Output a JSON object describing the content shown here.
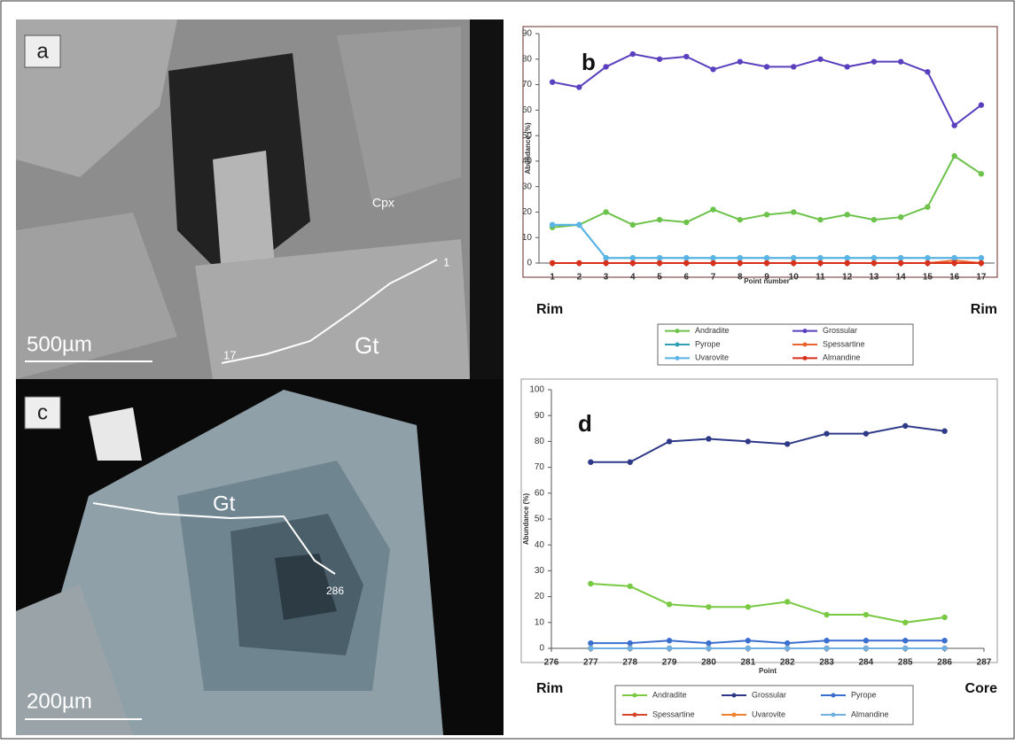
{
  "images": [
    {
      "label": "a",
      "annotations": [
        "Cpx",
        "Gt",
        "17",
        "1"
      ],
      "scale_bar": "500µm"
    },
    {
      "label": "c",
      "annotations": [
        "Gt",
        "286"
      ],
      "scale_bar": "200µm"
    }
  ],
  "chart_data": [
    {
      "type": "line",
      "label": "b",
      "x_label": "Point number",
      "y_label": "Abundance (%)",
      "left_label": "Rim",
      "right_label": "Rim",
      "x": [
        1,
        2,
        3,
        4,
        5,
        6,
        7,
        8,
        9,
        10,
        11,
        12,
        13,
        14,
        15,
        16,
        17
      ],
      "xlim": [
        0.5,
        17.5
      ],
      "xticks": [
        1,
        2,
        3,
        4,
        5,
        6,
        7,
        8,
        9,
        10,
        11,
        12,
        13,
        14,
        15,
        16,
        17
      ],
      "ylim": [
        0,
        90
      ],
      "yticks": [
        0,
        10,
        20,
        30,
        40,
        50,
        60,
        70,
        80,
        90
      ],
      "series": [
        {
          "name": "Andradite",
          "color": "#6cc24a",
          "values": [
            14,
            15,
            20,
            15,
            17,
            16,
            21,
            17,
            19,
            20,
            17,
            19,
            17,
            18,
            22,
            42,
            35
          ]
        },
        {
          "name": "Grossular",
          "color": "#5a3fbf",
          "values": [
            71,
            69,
            77,
            82,
            80,
            81,
            76,
            79,
            77,
            77,
            80,
            77,
            79,
            79,
            75,
            54,
            62
          ]
        },
        {
          "name": "Pyrope",
          "color": "#2f9fb3",
          "values": [
            15,
            15,
            2,
            2,
            2,
            2,
            2,
            2,
            2,
            2,
            2,
            2,
            2,
            2,
            2,
            2,
            2
          ]
        },
        {
          "name": "Spessartine",
          "color": "#e8642c",
          "values": [
            0,
            0,
            0,
            0,
            0,
            0,
            0,
            0,
            0,
            0,
            0,
            0,
            0,
            0,
            0,
            1,
            0
          ]
        },
        {
          "name": "Uvarovite",
          "color": "#5ab4e6",
          "values": [
            15,
            15,
            2,
            2,
            2,
            2,
            2,
            2,
            2,
            2,
            2,
            2,
            2,
            2,
            2,
            2,
            2
          ]
        },
        {
          "name": "Almandine",
          "color": "#d9301c",
          "values": [
            0,
            0,
            0,
            0,
            0,
            0,
            0,
            0,
            0,
            0,
            0,
            0,
            0,
            0,
            0,
            0,
            0
          ]
        }
      ]
    },
    {
      "type": "line",
      "label": "d",
      "x_label": "Point",
      "y_label": "Abundance (%)",
      "left_label": "Rim",
      "right_label": "Core",
      "x": [
        277,
        278,
        279,
        280,
        281,
        282,
        283,
        284,
        285,
        286
      ],
      "xlim": [
        276,
        287
      ],
      "xticks": [
        276,
        277,
        278,
        279,
        280,
        281,
        282,
        283,
        284,
        285,
        286,
        287
      ],
      "ylim": [
        0,
        100
      ],
      "yticks": [
        0,
        10,
        20,
        30,
        40,
        50,
        60,
        70,
        80,
        90,
        100
      ],
      "series": [
        {
          "name": "Andradite",
          "color": "#7ac943",
          "values": [
            25,
            24,
            17,
            16,
            16,
            18,
            13,
            13,
            10,
            12
          ]
        },
        {
          "name": "Grossular",
          "color": "#2e3a87",
          "values": [
            72,
            72,
            80,
            81,
            80,
            79,
            83,
            83,
            86,
            84
          ]
        },
        {
          "name": "Pyrope",
          "color": "#3a6fd0",
          "values": [
            2,
            2,
            3,
            2,
            3,
            2,
            3,
            3,
            3,
            3
          ]
        },
        {
          "name": "Spessartine",
          "color": "#d9452b",
          "values": [
            0,
            0,
            0,
            0,
            0,
            0,
            0,
            0,
            0,
            0
          ]
        },
        {
          "name": "Uvarovite",
          "color": "#f08030",
          "values": [
            0,
            0,
            0,
            0,
            0,
            0,
            0,
            0,
            0,
            0
          ]
        },
        {
          "name": "Almandine",
          "color": "#6fb0e0",
          "values": [
            0,
            0,
            0,
            0,
            0,
            0,
            0,
            0,
            0,
            0
          ]
        }
      ]
    }
  ]
}
